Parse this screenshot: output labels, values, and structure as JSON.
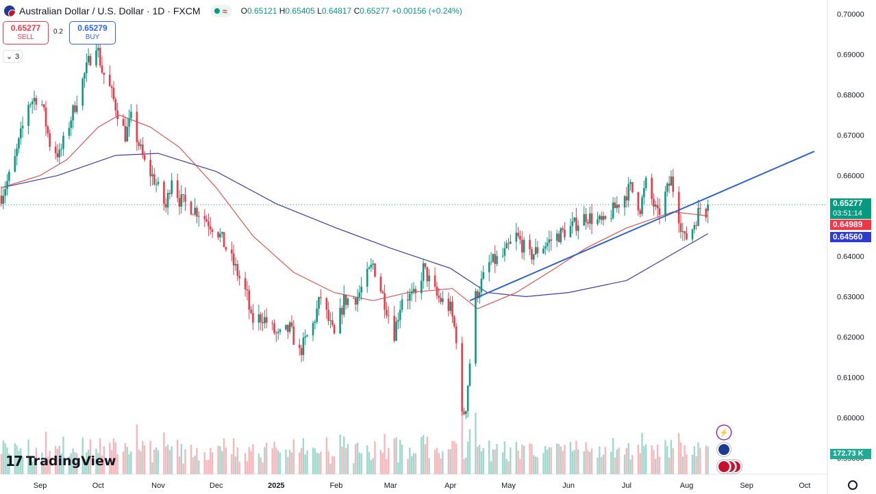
{
  "header": {
    "title": "Australian Dollar / U.S. Dollar · 1D · FXCM",
    "ohlc": {
      "open_label": "O",
      "open": "0.65121",
      "high_label": "H",
      "high": "0.65405",
      "low_label": "L",
      "low": "0.64817",
      "close_label": "C",
      "close": "0.65277",
      "change": "+0.00156 (+0.24%)"
    },
    "status_wave": "≈"
  },
  "trade": {
    "sell_price": "0.65277",
    "sell_label": "SELL",
    "buy_price": "0.65279",
    "buy_label": "BUY",
    "spread": "0.2"
  },
  "indicators_collapsed": {
    "count": "3"
  },
  "price_axis": {
    "ticks": [
      "0.70000",
      "0.69000",
      "0.68000",
      "0.67000",
      "0.66000",
      "0.65000",
      "0.64000",
      "0.63000",
      "0.62000",
      "0.61000",
      "0.60000",
      "0.59000"
    ],
    "last_price": "0.65277",
    "countdown": "03:51:14",
    "ma50_value": "0.64989",
    "ma200_value": "0.64560",
    "volume_value": "172.73 K"
  },
  "time_axis": {
    "labels": [
      "Sep",
      "Oct",
      "Nov",
      "Dec",
      "2025",
      "Feb",
      "Mar",
      "Apr",
      "May",
      "Jun",
      "Jul",
      "Aug",
      "Sep",
      "Oct"
    ]
  },
  "branding": {
    "logo_mark": "17",
    "logo_text": "TradingView"
  },
  "colors": {
    "up": "#089981",
    "down": "#f23645",
    "ma50": "#e05252",
    "ma200": "#3b3ba8",
    "trendline": "#2d62c8",
    "vol_up": "#9fd8cd",
    "vol_down": "#f7b6bb"
  },
  "chart_data": {
    "type": "candlestick",
    "symbol": "Australian Dollar / U.S. Dollar",
    "timeframe": "1D",
    "ylim": [
      0.586,
      0.7035
    ],
    "x_range": [
      "2024-08-12",
      "2025-10-12"
    ],
    "trendline": [
      [
        "2025-04-11",
        0.629
      ],
      [
        "2025-10-06",
        0.666
      ]
    ],
    "anchors": [
      [
        "2024-08-12",
        0.655
      ],
      [
        "2024-08-18",
        0.662
      ],
      [
        "2024-08-26",
        0.678
      ],
      [
        "2024-09-01",
        0.68
      ],
      [
        "2024-09-06",
        0.668
      ],
      [
        "2024-09-11",
        0.665
      ],
      [
        "2024-09-20",
        0.679
      ],
      [
        "2024-09-26",
        0.688
      ],
      [
        "2024-09-30",
        0.693
      ],
      [
        "2024-10-03",
        0.686
      ],
      [
        "2024-10-06",
        0.683
      ],
      [
        "2024-10-15",
        0.67
      ],
      [
        "2024-10-18",
        0.674
      ],
      [
        "2024-10-25",
        0.663
      ],
      [
        "2024-10-30",
        0.659
      ],
      [
        "2024-11-05",
        0.652
      ],
      [
        "2024-11-08",
        0.66
      ],
      [
        "2024-11-12",
        0.654
      ],
      [
        "2024-11-22",
        0.651
      ],
      [
        "2024-12-02",
        0.646
      ],
      [
        "2024-12-10",
        0.638
      ],
      [
        "2024-12-17",
        0.63
      ],
      [
        "2024-12-19",
        0.624
      ],
      [
        "2024-12-25",
        0.625
      ],
      [
        "2025-01-02",
        0.62
      ],
      [
        "2025-01-08",
        0.622
      ],
      [
        "2025-01-13",
        0.616
      ],
      [
        "2025-01-20",
        0.623
      ],
      [
        "2025-01-24",
        0.63
      ],
      [
        "2025-01-28",
        0.624
      ],
      [
        "2025-01-31",
        0.62
      ],
      [
        "2025-02-05",
        0.629
      ],
      [
        "2025-02-12",
        0.63
      ],
      [
        "2025-02-20",
        0.638
      ],
      [
        "2025-03-03",
        0.621
      ],
      [
        "2025-03-07",
        0.63
      ],
      [
        "2025-03-14",
        0.63
      ],
      [
        "2025-03-18",
        0.637
      ],
      [
        "2025-03-25",
        0.63
      ],
      [
        "2025-04-01",
        0.627
      ],
      [
        "2025-04-04",
        0.62
      ],
      [
        "2025-04-07",
        0.6
      ],
      [
        "2025-04-09",
        0.603
      ],
      [
        "2025-04-14",
        0.63
      ],
      [
        "2025-04-21",
        0.638
      ],
      [
        "2025-04-28",
        0.64
      ],
      [
        "2025-05-05",
        0.645
      ],
      [
        "2025-05-12",
        0.64
      ],
      [
        "2025-05-20",
        0.643
      ],
      [
        "2025-05-26",
        0.645
      ],
      [
        "2025-06-02",
        0.647
      ],
      [
        "2025-06-10",
        0.65
      ],
      [
        "2025-06-19",
        0.648
      ],
      [
        "2025-06-25",
        0.652
      ],
      [
        "2025-07-03",
        0.657
      ],
      [
        "2025-07-08",
        0.652
      ],
      [
        "2025-07-11",
        0.658
      ],
      [
        "2025-07-17",
        0.65
      ],
      [
        "2025-07-24",
        0.659
      ],
      [
        "2025-07-28",
        0.65
      ],
      [
        "2025-07-31",
        0.644
      ],
      [
        "2025-08-04",
        0.647
      ],
      [
        "2025-08-08",
        0.652
      ],
      [
        "2025-08-11",
        0.651
      ],
      [
        "2025-08-12",
        0.6528
      ]
    ],
    "ma50": [
      [
        "2024-08-12",
        0.657
      ],
      [
        "2024-09-01",
        0.66
      ],
      [
        "2024-09-15",
        0.664
      ],
      [
        "2024-10-01",
        0.672
      ],
      [
        "2024-10-12",
        0.675
      ],
      [
        "2024-10-28",
        0.672
      ],
      [
        "2024-11-12",
        0.667
      ],
      [
        "2024-12-01",
        0.657
      ],
      [
        "2024-12-20",
        0.645
      ],
      [
        "2025-01-10",
        0.636
      ],
      [
        "2025-01-31",
        0.631
      ],
      [
        "2025-02-20",
        0.629
      ],
      [
        "2025-03-10",
        0.631
      ],
      [
        "2025-04-02",
        0.632
      ],
      [
        "2025-04-15",
        0.627
      ],
      [
        "2025-05-05",
        0.631
      ],
      [
        "2025-05-25",
        0.637
      ],
      [
        "2025-06-10",
        0.642
      ],
      [
        "2025-07-01",
        0.647
      ],
      [
        "2025-07-25",
        0.651
      ],
      [
        "2025-08-12",
        0.65
      ]
    ],
    "ma200": [
      [
        "2024-08-12",
        0.657
      ],
      [
        "2024-09-10",
        0.66
      ],
      [
        "2024-10-10",
        0.665
      ],
      [
        "2024-11-01",
        0.6655
      ],
      [
        "2024-12-01",
        0.661
      ],
      [
        "2025-01-01",
        0.653
      ],
      [
        "2025-02-01",
        0.647
      ],
      [
        "2025-03-01",
        0.642
      ],
      [
        "2025-04-01",
        0.637
      ],
      [
        "2025-04-20",
        0.631
      ],
      [
        "2025-05-10",
        0.63
      ],
      [
        "2025-06-01",
        0.631
      ],
      [
        "2025-07-01",
        0.634
      ],
      [
        "2025-08-12",
        0.6456
      ]
    ]
  }
}
